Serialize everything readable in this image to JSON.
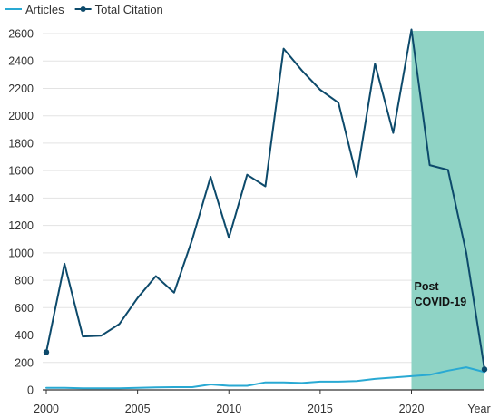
{
  "colors": {
    "articles": "#29a9d3",
    "citation": "#0d4a6b",
    "highlight": "#8fd3c5",
    "grid": "#e3e3e3",
    "axis": "#333333",
    "text": "#333333"
  },
  "chart_data": {
    "type": "line",
    "title": "",
    "xlabel": "Year",
    "ylabel": "",
    "xlim": [
      2000,
      2024
    ],
    "ylim": [
      0,
      2600
    ],
    "x_ticks": [
      2000,
      2005,
      2010,
      2015,
      2020
    ],
    "y_ticks": [
      0,
      200,
      400,
      600,
      800,
      1000,
      1200,
      1400,
      1600,
      1800,
      2000,
      2200,
      2400,
      2600
    ],
    "grid": "horizontal",
    "legend_position": "top-left",
    "x": [
      2000,
      2001,
      2002,
      2003,
      2004,
      2005,
      2006,
      2007,
      2008,
      2009,
      2010,
      2011,
      2012,
      2013,
      2014,
      2015,
      2016,
      2017,
      2018,
      2019,
      2020,
      2021,
      2022,
      2023,
      2024
    ],
    "series": [
      {
        "name": "Articles",
        "color": "#29a9d3",
        "marker": "none",
        "values": [
          15,
          15,
          12,
          12,
          12,
          15,
          18,
          20,
          20,
          40,
          30,
          30,
          55,
          55,
          50,
          60,
          60,
          65,
          80,
          90,
          100,
          110,
          140,
          165,
          130
        ]
      },
      {
        "name": "Total Citation",
        "color": "#0d4a6b",
        "marker": "endpoints",
        "values": [
          275,
          920,
          390,
          395,
          480,
          670,
          830,
          710,
          1100,
          1555,
          1110,
          1570,
          1485,
          2490,
          2330,
          2190,
          2095,
          1555,
          2380,
          1875,
          2630,
          1640,
          1605,
          1000,
          150
        ]
      }
    ],
    "highlight_region": {
      "x_start": 2020,
      "x_end": 2024,
      "label_lines": [
        "Post",
        "COVID-19"
      ]
    }
  }
}
